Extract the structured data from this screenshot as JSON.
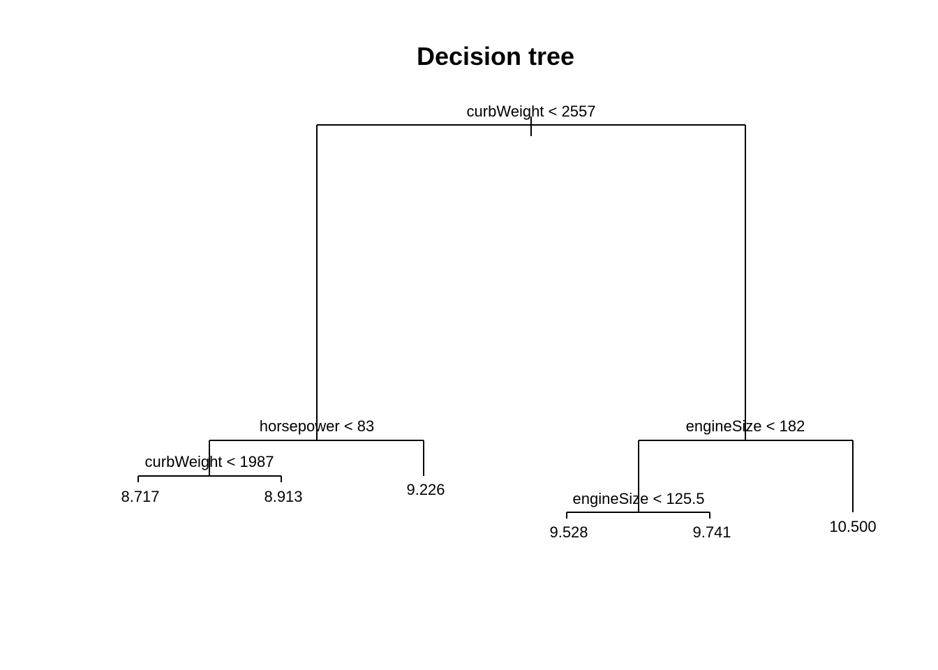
{
  "title": "Decision tree",
  "tree": {
    "root": {
      "split": "curbWeight < 2557",
      "left": {
        "split": "horsepower < 83",
        "left": {
          "split": "curbWeight < 1987",
          "left": {
            "leaf": "8.717"
          },
          "right": {
            "leaf": "8.913"
          }
        },
        "right": {
          "leaf": "9.226"
        }
      },
      "right": {
        "split": "engineSize < 182",
        "left": {
          "split": "engineSize < 125.5",
          "left": {
            "leaf": "9.528"
          },
          "right": {
            "leaf": "9.741"
          }
        },
        "right": {
          "leaf": "10.500"
        }
      }
    }
  }
}
